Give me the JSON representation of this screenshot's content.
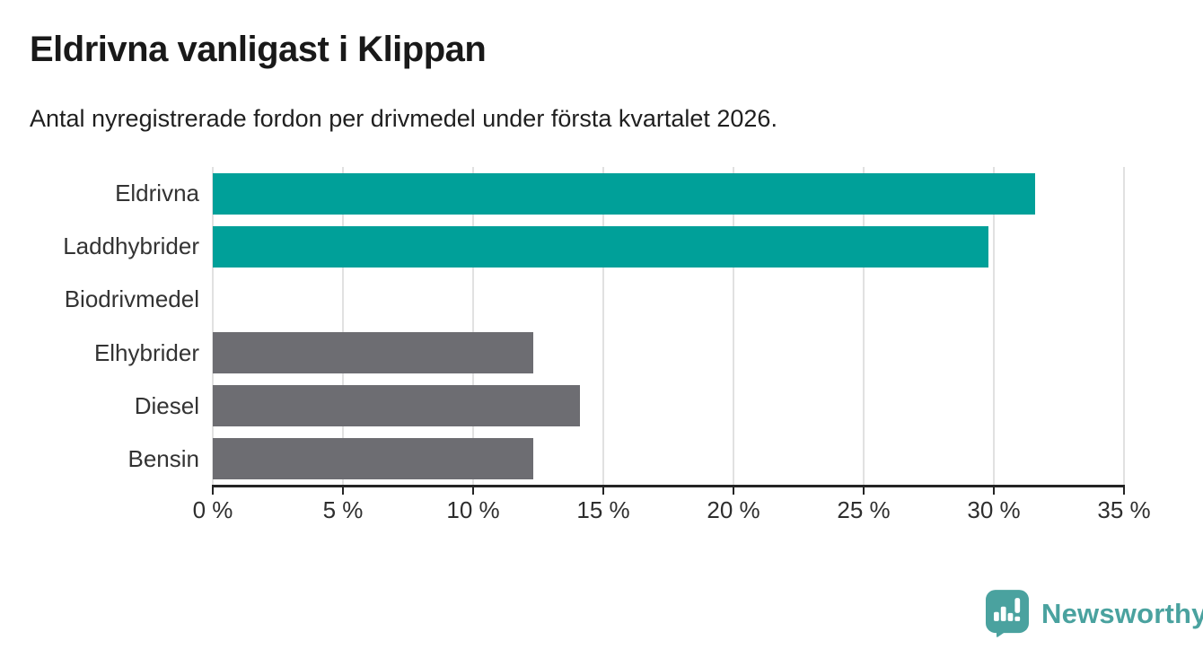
{
  "chart_data": {
    "type": "bar",
    "orientation": "horizontal",
    "title": "Eldrivna vanligast i Klippan",
    "subtitle": "Antal nyregistrerade fordon per drivmedel under första kvartalet 2026.",
    "categories": [
      "Eldrivna",
      "Laddhybrider",
      "Biodrivmedel",
      "Elhybrider",
      "Diesel",
      "Bensin"
    ],
    "values": [
      31.6,
      29.8,
      0,
      12.3,
      14.1,
      12.3
    ],
    "unit": "%",
    "colors": [
      "#00a099",
      "#00a099",
      "#6d6d72",
      "#6d6d72",
      "#6d6d72",
      "#6d6d72"
    ],
    "highlight_color": "#00a099",
    "default_color": "#6d6d72",
    "xlim": [
      0,
      35
    ],
    "x_tick_values": [
      0,
      5,
      10,
      15,
      20,
      25,
      30,
      35
    ],
    "x_tick_labels": [
      "0 %",
      "5 %",
      "10 %",
      "15 %",
      "20 %",
      "25 %",
      "30 %",
      "35 %"
    ],
    "grid": "vertical-gridlines",
    "legend": "none"
  },
  "footer": {
    "brand": "Newsworthy",
    "brand_color": "#4aa29f",
    "logo_icon": "bar-chart-speech-bubble-icon"
  }
}
